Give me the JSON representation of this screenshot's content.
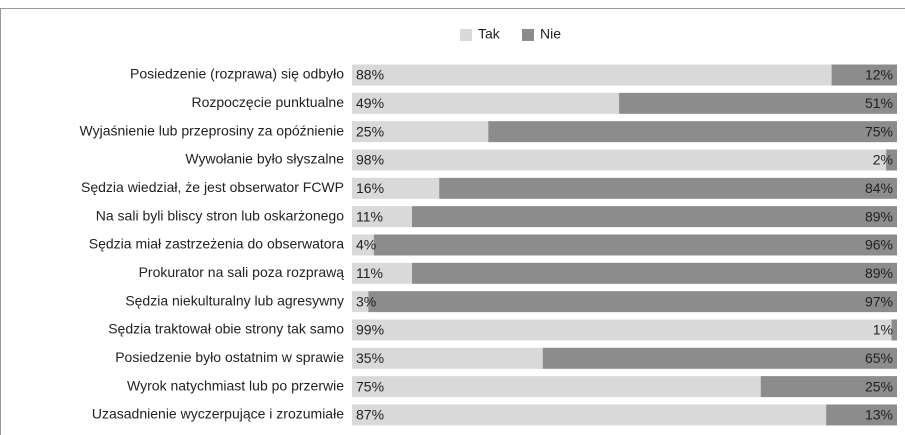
{
  "chart_data": {
    "type": "stacked-bar-horizontal",
    "categories": [
      "Posiedzenie (rozprawa) się odbyło",
      "Rozpoczęcie punktualne",
      "Wyjaśnienie lub przeprosiny za opóźnienie",
      "Wywołanie było słyszalne",
      "Sędzia wiedział, że jest obserwator FCWP",
      "Na sali byli bliscy stron lub oskarżonego",
      "Sędzia miał zastrzeżenia do obserwatora",
      "Prokurator na sali poza rozprawą",
      "Sędzia niekulturalny lub agresywny",
      "Sędzia traktował obie strony tak samo",
      "Posiedzenie było ostatnim w sprawie",
      "Wyrok natychmiast lub po przerwie",
      "Uzasadnienie wyczerpujące i zrozumiałe"
    ],
    "series": [
      {
        "name": "Tak",
        "color": "#d9d9d9",
        "values": [
          88,
          49,
          25,
          98,
          16,
          11,
          4,
          11,
          3,
          99,
          35,
          75,
          87
        ],
        "value_labels": [
          "88%",
          "49%",
          "25%",
          "98%",
          "16%",
          "11%",
          "4%",
          "11%",
          "3%",
          "99%",
          "35%",
          "75%",
          "87%"
        ]
      },
      {
        "name": "Nie",
        "color": "#8c8c8c",
        "values": [
          12,
          51,
          75,
          2,
          84,
          89,
          96,
          89,
          97,
          1,
          65,
          25,
          13
        ],
        "value_labels": [
          "12%",
          "51%",
          "75%",
          "2%",
          "84%",
          "89%",
          "96%",
          "89%",
          "97%",
          "1%",
          "65%",
          "25%",
          "13%"
        ]
      }
    ],
    "legend": "top"
  }
}
